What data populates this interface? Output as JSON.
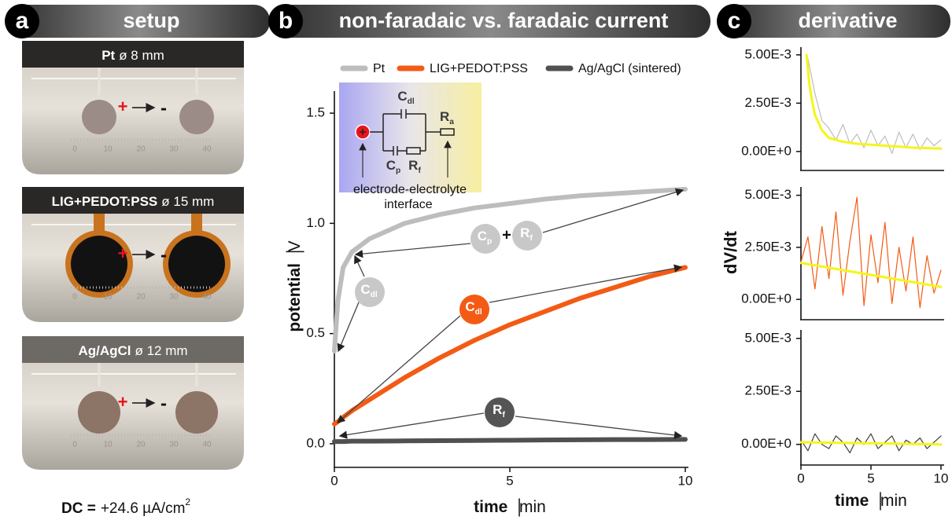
{
  "panels": [
    {
      "letter": "a",
      "title": "setup"
    },
    {
      "letter": "b",
      "title": "non-faradaic vs. faradaic current"
    },
    {
      "letter": "c",
      "title": "derivative"
    }
  ],
  "photos": [
    {
      "bold": "Pt",
      "label": "ø 8 mm"
    },
    {
      "bold": "LIG+PEDOT:PSS",
      "label": "ø 15 mm"
    },
    {
      "bold": "Ag/AgCl",
      "label": "ø 12 mm"
    }
  ],
  "polarity": [
    "+",
    "-"
  ],
  "ruler_labels": [
    "0",
    "10",
    "20",
    "30",
    "40"
  ],
  "footnote": {
    "bold": "DC =",
    "text": "+24.6 µA/cm",
    "sup": "2"
  },
  "chart_data": [
    {
      "type": "line",
      "x_label": {
        "bold": "time",
        "unit": "min"
      },
      "y_label": {
        "bold": "potential",
        "unit": "V"
      },
      "x": [
        0,
        0.1,
        0.25,
        0.5,
        1,
        2,
        3,
        4,
        5,
        6,
        7,
        8,
        9,
        10
      ],
      "series": [
        {
          "name": "Pt",
          "color": "#bdbdbd",
          "values": [
            0.42,
            0.65,
            0.8,
            0.87,
            0.93,
            1.0,
            1.04,
            1.07,
            1.09,
            1.11,
            1.125,
            1.135,
            1.145,
            1.155
          ]
        },
        {
          "name": "LIG+PEDOT:PSS",
          "color": "#f35b15",
          "values": [
            0.09,
            0.1,
            0.12,
            0.15,
            0.2,
            0.3,
            0.39,
            0.47,
            0.54,
            0.6,
            0.66,
            0.71,
            0.76,
            0.8
          ]
        },
        {
          "name": "Ag/AgCl (sintered)",
          "color": "#505050",
          "values": [
            0.01,
            0.01,
            0.01,
            0.012,
            0.012,
            0.013,
            0.014,
            0.015,
            0.016,
            0.017,
            0.018,
            0.019,
            0.019,
            0.02
          ]
        }
      ],
      "xlim": [
        0,
        10
      ],
      "xticks": [
        0,
        5,
        10
      ],
      "ylim": [
        -0.1,
        1.6
      ],
      "yticks": [
        {
          "value": 0,
          "label": "0.0"
        },
        0.5,
        {
          "value": 1,
          "label": "1.0"
        },
        1.5
      ],
      "legend": "top",
      "inset": {
        "labels": [
          {
            "main": "C",
            "sub": "dl"
          },
          {
            "main": "R",
            "sub": "a"
          },
          {
            "main": "C",
            "sub": "p"
          },
          {
            "main": "R",
            "sub": "f"
          }
        ],
        "caption": [
          "electrode-electrolyte",
          "interface"
        ]
      },
      "bubbles": [
        {
          "main": "C",
          "sub": "dl",
          "color": "#c8c8c8"
        },
        {
          "main": "C",
          "sub": "p",
          "color": "#c8c8c8"
        },
        {
          "main": "R",
          "sub": "f",
          "color": "#c8c8c8"
        },
        {
          "main": "C",
          "sub": "dl",
          "color": "#f35b15"
        },
        {
          "main": "R",
          "sub": "f",
          "color": "#555555"
        }
      ],
      "joiner": "+"
    },
    {
      "type": "line",
      "series": [
        {
          "color": "#bdbdbd",
          "x": [
            0.5,
            1,
            1.5,
            2,
            2.5,
            3,
            3.5,
            4,
            4.5,
            5,
            5.5,
            6,
            6.5,
            7,
            7.5,
            8,
            8.5,
            9,
            9.5,
            10
          ],
          "values": [
            0.0048,
            0.003,
            0.0016,
            0.0012,
            0.0006,
            0.0014,
            0.0004,
            0.0009,
            0.0002,
            0.0011,
            0.0003,
            0.0008,
            -0.0001,
            0.001,
            0.0002,
            0.0009,
            0.0001,
            0.0007,
            0.0003,
            0.0006
          ]
        },
        {
          "color": "#f5f51a",
          "x": [
            0.4,
            0.6,
            0.8,
            1,
            1.5,
            2,
            3,
            4,
            6,
            8,
            10
          ],
          "values": [
            0.005,
            0.0035,
            0.0026,
            0.0019,
            0.0011,
            0.0007,
            0.0005,
            0.0004,
            0.0003,
            0.0002,
            0.00015
          ]
        }
      ],
      "xlim": [
        0,
        10
      ],
      "ylim": [
        -0.0009,
        0.0054
      ],
      "yticks": [
        {
          "value": 0,
          "label": "0.00E+0"
        },
        {
          "value": 0.0025,
          "label": "2.50E-3"
        },
        {
          "value": 0.005,
          "label": "5.00E-3"
        }
      ]
    },
    {
      "type": "line",
      "y_label": "dV/dt",
      "series": [
        {
          "color": "#f35b15",
          "x": [
            0,
            0.5,
            1,
            1.5,
            2,
            2.5,
            3,
            3.5,
            4,
            4.5,
            5,
            5.5,
            6,
            6.5,
            7,
            7.5,
            8,
            8.5,
            9,
            9.5,
            10
          ],
          "values": [
            0.0018,
            0.003,
            0.0005,
            0.0035,
            0.001,
            0.0042,
            0.0002,
            0.0028,
            0.0049,
            -0.0003,
            0.0031,
            0.0008,
            0.0037,
            -0.0002,
            0.0025,
            0.0004,
            0.003,
            -0.0004,
            0.0021,
            0.0003,
            0.0014
          ]
        },
        {
          "color": "#f5f51a",
          "x": [
            0,
            10
          ],
          "values": [
            0.00175,
            0.0006
          ]
        }
      ],
      "xlim": [
        0,
        10
      ],
      "ylim": [
        -0.0009,
        0.0054
      ],
      "yticks": [
        {
          "value": 0,
          "label": "0.00E+0"
        },
        {
          "value": 0.0025,
          "label": "2.50E-3"
        },
        {
          "value": 0.005,
          "label": "5.00E-3"
        }
      ]
    },
    {
      "type": "line",
      "x_label": {
        "bold": "time",
        "unit": "min"
      },
      "series": [
        {
          "color": "#404040",
          "x": [
            0,
            0.5,
            1,
            1.5,
            2,
            2.5,
            3,
            3.5,
            4,
            4.5,
            5,
            5.5,
            6,
            6.5,
            7,
            7.5,
            8,
            8.5,
            9,
            9.5,
            10
          ],
          "values": [
            0.0002,
            -0.0003,
            0.0005,
            0,
            -0.0002,
            0.0004,
            0.0001,
            -0.0004,
            0.0003,
            0,
            0.0005,
            -0.0002,
            0.0001,
            0.0004,
            -0.0003,
            0.0002,
            0,
            0.0003,
            -0.0002,
            0.0001,
            0.0004
          ]
        },
        {
          "color": "#f5f51a",
          "x": [
            0,
            10
          ],
          "values": [
            0.0001,
            0
          ]
        }
      ],
      "xlim": [
        0,
        10
      ],
      "xticks": [
        0,
        5,
        10
      ],
      "ylim": [
        -0.0009,
        0.0054
      ],
      "yticks": [
        {
          "value": 0,
          "label": "0.00E+0"
        },
        {
          "value": 0.0025,
          "label": "2.50E-3"
        },
        {
          "value": 0.005,
          "label": "5.00E-3"
        }
      ]
    }
  ]
}
